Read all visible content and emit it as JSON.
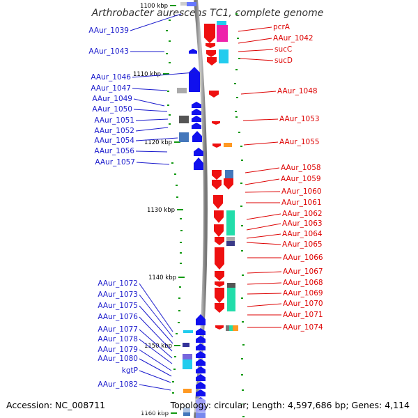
{
  "title": "Arthrobacter aurescens TC1, complete genome",
  "accession": "Accession: NC_008711",
  "topology": "Topology: circular; Length: 4,597,686 bp; Genes: 4,114",
  "ruler": {
    "labels": [
      "1100 kbp",
      "1110 kbp",
      "1120 kbp",
      "1130 kbp",
      "1140 kbp",
      "1150 kbp",
      "1160 kbp"
    ]
  },
  "left_labels": [
    "AAur_1039",
    "AAur_1043",
    "AAur_1046",
    "AAur_1047",
    "AAur_1049",
    "AAur_1050",
    "AAur_1051",
    "AAur_1052",
    "AAur_1054",
    "AAur_1056",
    "AAur_1057",
    "AAur_1072",
    "AAur_1073",
    "AAur_1075",
    "AAur_1076",
    "AAur_1077",
    "AAur_1078",
    "AAur_1079",
    "AAur_1080",
    "kgtP",
    "AAur_1082"
  ],
  "right_labels": [
    "pcrA",
    "AAur_1042",
    "sucC",
    "sucD",
    "AAur_1048",
    "AAur_1053",
    "AAur_1055",
    "AAur_1058",
    "AAur_1059",
    "AAur_1060",
    "AAur_1061",
    "AAur_1062",
    "AAur_1063",
    "AAur_1064",
    "AAur_1065",
    "AAur_1066",
    "AAur_1067",
    "AAur_1068",
    "AAur_1069",
    "AAur_1070",
    "AAur_1071",
    "AAur_1074"
  ],
  "colors": {
    "reverse_strand": "#1010ee",
    "forward_strand": "#ee1010",
    "magenta": "#ee22aa",
    "cyan": "#22ccee",
    "green": "#22ddaa",
    "orange": "#ff9922",
    "grey": "#888888",
    "backbone": "#999999"
  }
}
